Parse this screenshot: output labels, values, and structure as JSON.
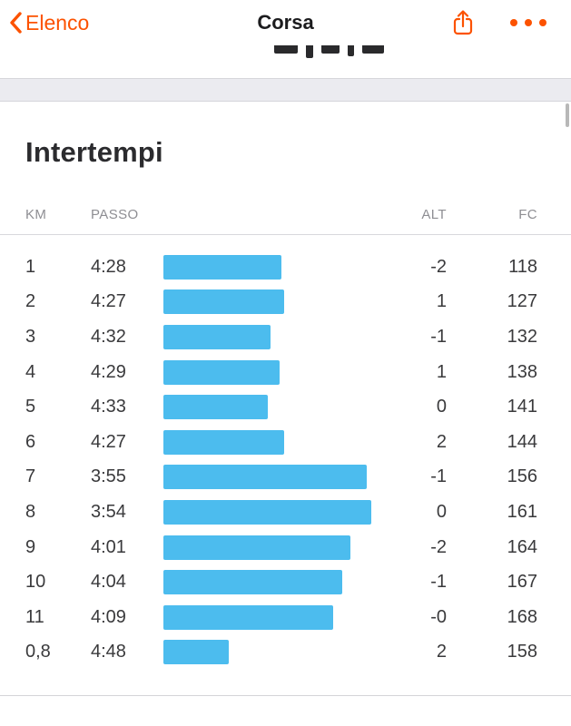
{
  "nav": {
    "back_label": "Elenco",
    "title": "Corsa"
  },
  "section": {
    "title": "Intertempi"
  },
  "chart_data": {
    "type": "bar",
    "orientation": "horizontal",
    "title": "Intertempi",
    "headers": {
      "km": "KM",
      "pace": "PASSO",
      "alt": "ALT",
      "fc": "FC"
    },
    "note": "bar length encodes pace per split; faster pace = longer bar",
    "rows": [
      {
        "km": "1",
        "pace": "4:28",
        "alt": "-2",
        "fc": "118",
        "bar_pct": 54.2
      },
      {
        "km": "2",
        "pace": "4:27",
        "alt": "1",
        "fc": "127",
        "bar_pct": 55.4
      },
      {
        "km": "3",
        "pace": "4:32",
        "alt": "-1",
        "fc": "132",
        "bar_pct": 49.2
      },
      {
        "km": "4",
        "pace": "4:29",
        "alt": "1",
        "fc": "138",
        "bar_pct": 53.3
      },
      {
        "km": "5",
        "pace": "4:33",
        "alt": "0",
        "fc": "141",
        "bar_pct": 47.9
      },
      {
        "km": "6",
        "pace": "4:27",
        "alt": "2",
        "fc": "144",
        "bar_pct": 55.4
      },
      {
        "km": "7",
        "pace": "3:55",
        "alt": "-1",
        "fc": "156",
        "bar_pct": 93.3
      },
      {
        "km": "8",
        "pace": "3:54",
        "alt": "0",
        "fc": "161",
        "bar_pct": 95.4
      },
      {
        "km": "9",
        "pace": "4:01",
        "alt": "-2",
        "fc": "164",
        "bar_pct": 85.8
      },
      {
        "km": "10",
        "pace": "4:04",
        "alt": "-1",
        "fc": "167",
        "bar_pct": 82.1
      },
      {
        "km": "11",
        "pace": "4:09",
        "alt": "-0",
        "fc": "168",
        "bar_pct": 77.9
      },
      {
        "km": "0,8",
        "pace": "4:48",
        "alt": "2",
        "fc": "158",
        "bar_pct": 30.0
      }
    ]
  },
  "colors": {
    "accent": "#FC5200",
    "bar": "#4CBCEE"
  }
}
